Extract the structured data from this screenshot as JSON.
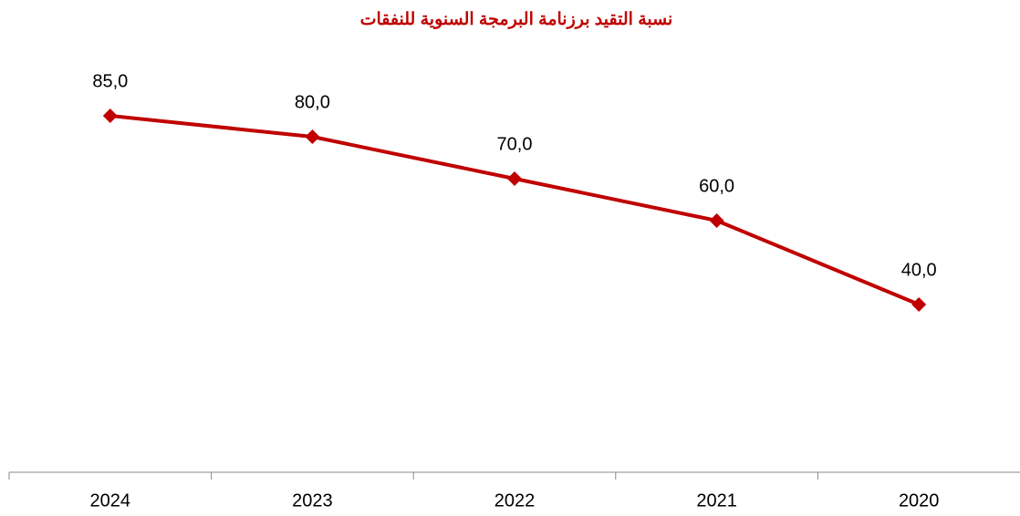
{
  "chart_data": {
    "type": "line",
    "title": "نسبة التقيد برزنامة البرمجة السنوية للنفقات",
    "categories": [
      "2024",
      "2023",
      "2022",
      "2021",
      "2020"
    ],
    "series": [
      {
        "name": null,
        "color": "#c00000",
        "values": [
          85,
          80,
          70,
          60,
          40
        ],
        "value_labels": [
          "85,0",
          "80,0",
          "70,0",
          "60,0",
          "40,0"
        ]
      }
    ],
    "ylim": [
      0,
      100
    ],
    "grid": false
  }
}
